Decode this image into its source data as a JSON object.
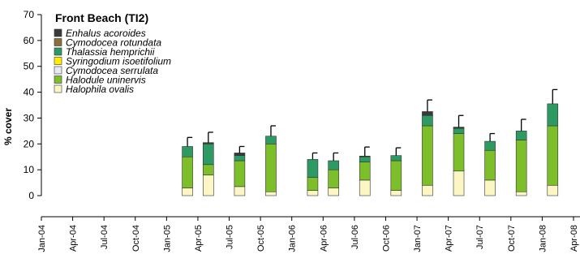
{
  "chart_data": {
    "type": "bar",
    "stacked": true,
    "title": "Front Beach (TI2)",
    "xlabel": "",
    "ylabel": "% cover",
    "ylim": [
      0,
      70
    ],
    "yticks": [
      0,
      10,
      20,
      30,
      40,
      50,
      60,
      70
    ],
    "x_ticks": [
      "Jan-04",
      "Apr-04",
      "Jul-04",
      "Oct-04",
      "Jan-05",
      "Apr-05",
      "Jul-05",
      "Oct-05",
      "Jan-06",
      "Apr-06",
      "Jul-06",
      "Oct-06",
      "Jan-07",
      "Apr-07",
      "Jul-07",
      "Oct-07",
      "Jan-08",
      "Apr-08"
    ],
    "x_domain": [
      "2004-01",
      "2008-04"
    ],
    "legend_position": "top-left",
    "grid": false,
    "error_bars": true,
    "series": [
      {
        "name": "Enhalus acoroides",
        "color": "#3a3a3a"
      },
      {
        "name": "Cymodocea rotundata",
        "color": "#8a6f3a"
      },
      {
        "name": "Thalassia hemprichii",
        "color": "#2e9a63"
      },
      {
        "name": "Syringodium isoetifolium",
        "color": "#ffee00"
      },
      {
        "name": "Cymodocea serrulata",
        "color": "#e8ecf2"
      },
      {
        "name": "Halodule uninervis",
        "color": "#7cbf2a"
      },
      {
        "name": "Halophila ovalis",
        "color": "#fbf6c4"
      }
    ],
    "samples": [
      {
        "date": "2005-03",
        "halophila": 3,
        "halodule": 12,
        "serrulata": 0,
        "syringodium": 0,
        "thalassia": 4,
        "rotundata": 0,
        "enhalus": 0,
        "error": 3.5
      },
      {
        "date": "2005-05",
        "halophila": 8,
        "halodule": 4,
        "serrulata": 0,
        "syringodium": 0,
        "thalassia": 8,
        "rotundata": 0,
        "enhalus": 0.5,
        "error": 4
      },
      {
        "date": "2005-08",
        "halophila": 3.5,
        "halodule": 10,
        "serrulata": 0,
        "syringodium": 0,
        "thalassia": 2,
        "rotundata": 0,
        "enhalus": 1,
        "error": 2.5
      },
      {
        "date": "2005-11",
        "halophila": 1.5,
        "halodule": 18.5,
        "serrulata": 0,
        "syringodium": 0,
        "thalassia": 3,
        "rotundata": 0,
        "enhalus": 0,
        "error": 4
      },
      {
        "date": "2006-03",
        "halophila": 2,
        "halodule": 5,
        "serrulata": 0,
        "syringodium": 0,
        "thalassia": 7,
        "rotundata": 0,
        "enhalus": 0,
        "error": 2.5
      },
      {
        "date": "2006-05",
        "halophila": 3,
        "halodule": 7,
        "serrulata": 0,
        "syringodium": 0,
        "thalassia": 3.5,
        "rotundata": 0,
        "enhalus": 0,
        "error": 3
      },
      {
        "date": "2006-08",
        "halophila": 6,
        "halodule": 7,
        "serrulata": 0,
        "syringodium": 0,
        "thalassia": 2,
        "rotundata": 0,
        "enhalus": 0.3,
        "error": 3.5
      },
      {
        "date": "2006-11",
        "halophila": 2,
        "halodule": 11.5,
        "serrulata": 0,
        "syringodium": 0,
        "thalassia": 2,
        "rotundata": 0,
        "enhalus": 0,
        "error": 3
      },
      {
        "date": "2007-02",
        "halophila": 4,
        "halodule": 23,
        "serrulata": 0,
        "syringodium": 0,
        "thalassia": 4,
        "rotundata": 0,
        "enhalus": 1.5,
        "error": 4.5
      },
      {
        "date": "2007-05",
        "halophila": 9.5,
        "halodule": 14.5,
        "serrulata": 0,
        "syringodium": 0,
        "thalassia": 2,
        "rotundata": 0,
        "enhalus": 0.5,
        "error": 4.5
      },
      {
        "date": "2007-08",
        "halophila": 6,
        "halodule": 11.5,
        "serrulata": 0,
        "syringodium": 0,
        "thalassia": 3.5,
        "rotundata": 0,
        "enhalus": 0,
        "error": 3
      },
      {
        "date": "2007-11",
        "halophila": 1.5,
        "halodule": 20,
        "serrulata": 0,
        "syringodium": 0,
        "thalassia": 3.5,
        "rotundata": 0,
        "enhalus": 0,
        "error": 4.5
      },
      {
        "date": "2008-02",
        "halophila": 4,
        "halodule": 23,
        "serrulata": 0,
        "syringodium": 0,
        "thalassia": 8.5,
        "rotundata": 0,
        "enhalus": 0,
        "error": 5.5
      }
    ]
  }
}
